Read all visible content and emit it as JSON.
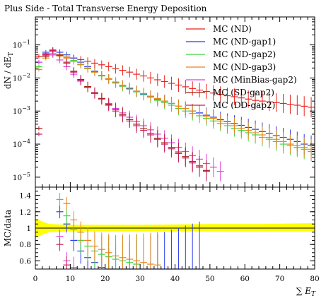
{
  "chart_data": [
    {
      "type": "scatter",
      "panel": "main",
      "title": "Plus Side - Total Transverse Energy Deposition",
      "ylabel": "dN/dE_T",
      "ylabel_display": "dN / dE",
      "ylabel_sub": "T",
      "y_scale": "log",
      "xlim": [
        0,
        80
      ],
      "ylim": [
        5e-06,
        0.7
      ],
      "y_ticks": [
        {
          "label": "10",
          "exp": "−1",
          "value": 0.1
        },
        {
          "label": "10",
          "exp": "−2",
          "value": 0.01
        },
        {
          "label": "10",
          "exp": "−3",
          "value": 0.001
        },
        {
          "label": "10",
          "exp": "−4",
          "value": 0.0001
        },
        {
          "label": "10",
          "exp": "−5",
          "value": 1e-05
        }
      ],
      "legend_position": "top-right",
      "series": [
        {
          "name": "MC (ND)",
          "color": "#e8221b",
          "x": [
            1,
            3,
            5,
            7,
            9,
            11,
            13,
            15,
            17,
            19,
            21,
            23,
            25,
            27,
            29,
            31,
            33,
            35,
            37,
            39,
            41,
            43,
            45,
            47,
            49,
            51,
            53,
            55,
            57,
            59,
            61,
            63,
            65,
            67,
            69,
            71,
            73,
            75,
            77,
            79
          ],
          "y": [
            0.045,
            0.052,
            0.05,
            0.047,
            0.043,
            0.04,
            0.036,
            0.032,
            0.028,
            0.025,
            0.022,
            0.019,
            0.017,
            0.015,
            0.013,
            0.0115,
            0.01,
            0.0088,
            0.0078,
            0.0069,
            0.0061,
            0.0054,
            0.0048,
            0.0043,
            0.0039,
            0.0035,
            0.0032,
            0.0029,
            0.0027,
            0.0025,
            0.0023,
            0.0021,
            0.002,
            0.0019,
            0.0018,
            0.0017,
            0.0016,
            0.0015,
            0.0014,
            0.0013
          ]
        },
        {
          "name": "MC (ND-gap1)",
          "color": "#2e3be8",
          "x": [
            1,
            3,
            5,
            7,
            9,
            11,
            13,
            15,
            17,
            19,
            21,
            23,
            25,
            27,
            29,
            31,
            33,
            35,
            37,
            39,
            41,
            43,
            45,
            47,
            49,
            51,
            53,
            55,
            57,
            59,
            61,
            63,
            65,
            67,
            69,
            71,
            73,
            75,
            77,
            79
          ],
          "y": [
            0.03,
            0.06,
            0.065,
            0.06,
            0.05,
            0.04,
            0.03,
            0.022,
            0.016,
            0.012,
            0.0095,
            0.0075,
            0.006,
            0.0048,
            0.004,
            0.0033,
            0.0028,
            0.0023,
            0.002,
            0.0017,
            0.0014,
            0.0012,
            0.001,
            0.00088,
            0.00075,
            0.00065,
            0.00055,
            0.00048,
            0.00042,
            0.00037,
            0.00032,
            0.00028,
            0.00024,
            0.00021,
            0.00018,
            0.00016,
            0.00014,
            0.00012,
            0.0001,
            9e-05
          ]
        },
        {
          "name": "MC (ND-gap2)",
          "color": "#3fd63f",
          "x": [
            1,
            3,
            5,
            7,
            9,
            11,
            13,
            15,
            17,
            19,
            21,
            23,
            25,
            27,
            29,
            31,
            33,
            35,
            37,
            39,
            41,
            43,
            45,
            47,
            49,
            51,
            53,
            55,
            57,
            59,
            61,
            63,
            65,
            67,
            69,
            71,
            73,
            75,
            77,
            79
          ],
          "y": [
            0.022,
            0.048,
            0.055,
            0.05,
            0.042,
            0.034,
            0.026,
            0.02,
            0.015,
            0.0115,
            0.009,
            0.007,
            0.0056,
            0.0046,
            0.0038,
            0.0031,
            0.0026,
            0.0021,
            0.0018,
            0.0015,
            0.0012,
            0.001,
            0.00085,
            0.00072,
            0.0006,
            0.0005,
            0.00042,
            0.00036,
            0.0003,
            0.00026,
            0.00022,
            0.00019,
            0.00016,
            0.00014,
            0.00012,
            0.0001,
            9e-05,
            8e-05,
            7e-05,
            6e-05
          ]
        },
        {
          "name": "MC (ND-gap3)",
          "color": "#e8851a",
          "x": [
            1,
            3,
            5,
            7,
            9,
            11,
            13,
            15,
            17,
            19,
            21,
            23,
            25,
            27,
            29,
            31,
            33,
            35,
            37,
            39,
            41,
            43,
            45,
            47,
            49,
            51,
            53,
            55,
            57,
            59,
            61,
            63,
            65,
            67,
            69,
            71,
            73,
            75,
            77,
            79
          ],
          "y": [
            0.018,
            0.04,
            0.05,
            0.046,
            0.04,
            0.032,
            0.025,
            0.019,
            0.015,
            0.012,
            0.0095,
            0.0075,
            0.006,
            0.005,
            0.004,
            0.0034,
            0.0028,
            0.0024,
            0.002,
            0.0017,
            0.0014,
            0.0012,
            0.001,
            0.00085,
            0.0007,
            0.0006,
            0.0005,
            0.00042,
            0.00036,
            0.0003,
            0.00026,
            0.00022,
            0.00019,
            0.00016,
            0.00014,
            0.00012,
            0.0001,
            9e-05,
            8e-05,
            7e-05
          ]
        },
        {
          "name": "MC (MinBias-gap2)",
          "color": "#e33fd8",
          "x": [
            1,
            3,
            5,
            7,
            9,
            11,
            13,
            15,
            17,
            19,
            21,
            23,
            25,
            27,
            29,
            31,
            33,
            35,
            37,
            39,
            41,
            43,
            45,
            47,
            49,
            51,
            53
          ],
          "y": [
            0.03,
            0.055,
            0.05,
            0.035,
            0.022,
            0.013,
            0.008,
            0.0052,
            0.0035,
            0.0024,
            0.0017,
            0.0012,
            0.00088,
            0.00065,
            0.00048,
            0.00036,
            0.00027,
            0.0002,
            0.00015,
            0.00011,
            8e-05,
            6e-05,
            4.5e-05,
            3.5e-05,
            2.6e-05,
            2e-05,
            1.5e-05
          ]
        },
        {
          "name": "MC (SD-gap2)",
          "color": "#a32010",
          "x": [
            1,
            3,
            5,
            7,
            9,
            11,
            13,
            15,
            17,
            19,
            21,
            23,
            25,
            27,
            29,
            31,
            33,
            35,
            37,
            39,
            41,
            43,
            45,
            47,
            49
          ],
          "y": [
            0.0003,
            0.045,
            0.07,
            0.05,
            0.03,
            0.016,
            0.009,
            0.0055,
            0.0036,
            0.0024,
            0.0016,
            0.0011,
            0.00078,
            0.00055,
            0.0004,
            0.00029,
            0.00021,
            0.00015,
            0.00011,
            8e-05,
            5.8e-05,
            4.2e-05,
            3e-05,
            2.2e-05,
            1.6e-05
          ]
        },
        {
          "name": "MC (DD-gap2)",
          "color": "#c61f5e",
          "x": [
            1,
            3,
            5,
            7,
            9,
            11,
            13,
            15,
            17,
            19,
            21,
            23,
            25,
            27,
            29,
            31,
            33,
            35,
            37,
            39,
            41,
            43,
            45,
            47,
            49
          ],
          "y": [
            0.0002,
            0.05,
            0.068,
            0.048,
            0.028,
            0.015,
            0.0085,
            0.0052,
            0.0034,
            0.0023,
            0.0015,
            0.001,
            0.00072,
            0.0005,
            0.00036,
            0.00026,
            0.00019,
            0.00014,
            0.0001,
            7.2e-05,
            5.2e-05,
            3.8e-05,
            2.7e-05,
            2e-05,
            1.5e-05
          ]
        }
      ]
    },
    {
      "type": "scatter",
      "panel": "ratio",
      "ylabel": "MC/data",
      "xlabel": "∑ E_T",
      "xlabel_display": "∑ E",
      "xlabel_sub": "T",
      "xlim": [
        0,
        80
      ],
      "ylim": [
        0.5,
        1.5
      ],
      "x_ticks": [
        "0",
        "10",
        "20",
        "30",
        "40",
        "50",
        "60",
        "70",
        "80"
      ],
      "y_ticks": [
        "0.6",
        "0.8",
        "1",
        "1.2",
        "1.4"
      ],
      "reference_band": {
        "value": 1.0,
        "lower": [
          0.88,
          0.92,
          0.95,
          0.96,
          0.96,
          0.96,
          0.96,
          0.96
        ],
        "upper": [
          1.12,
          1.08,
          1.05,
          1.04,
          1.04,
          1.05,
          1.05,
          1.06
        ],
        "x": [
          0,
          2,
          4,
          10,
          30,
          50,
          65,
          80
        ],
        "color": "#ffff00"
      },
      "series": [
        {
          "name": "MC (ND-gap1)",
          "color": "#2e3be8",
          "x": [
            7,
            9,
            11,
            13,
            15,
            17,
            19,
            21,
            23,
            25,
            27,
            29,
            31,
            33,
            35,
            37,
            39,
            41,
            43,
            45,
            47
          ],
          "y": [
            1.2,
            1.05,
            0.85,
            0.72,
            0.64,
            0.58,
            0.52,
            0.5,
            0.5,
            0.5,
            0.5,
            0.5,
            0.5,
            0.5,
            0.5,
            0.5,
            0.5,
            0.5,
            0.5,
            0.5,
            0.5
          ]
        },
        {
          "name": "MC (ND-gap2)",
          "color": "#3fd63f",
          "x": [
            7,
            9,
            11,
            13,
            15,
            17,
            19,
            21,
            23,
            25,
            27,
            29
          ],
          "y": [
            1.35,
            1.15,
            0.98,
            0.85,
            0.78,
            0.72,
            0.68,
            0.65,
            0.62,
            0.6,
            0.58,
            0.56
          ]
        },
        {
          "name": "MC (ND-gap3)",
          "color": "#e8851a",
          "x": [
            9,
            11,
            13,
            15,
            17,
            19,
            21,
            23,
            25,
            27,
            29,
            31,
            33,
            35
          ],
          "y": [
            1.3,
            1.1,
            0.95,
            0.85,
            0.78,
            0.74,
            0.7,
            0.66,
            0.64,
            0.62,
            0.6,
            0.58,
            0.56,
            0.55
          ]
        },
        {
          "name": "MC (MinBias-gap2)",
          "color": "#e33fd8",
          "x": [
            7,
            9,
            11
          ],
          "y": [
            0.9,
            0.6,
            0.52
          ]
        },
        {
          "name": "MC (DD-gap2)",
          "color": "#c61f5e",
          "x": [
            7,
            9
          ],
          "y": [
            0.8,
            0.55
          ]
        }
      ]
    }
  ]
}
